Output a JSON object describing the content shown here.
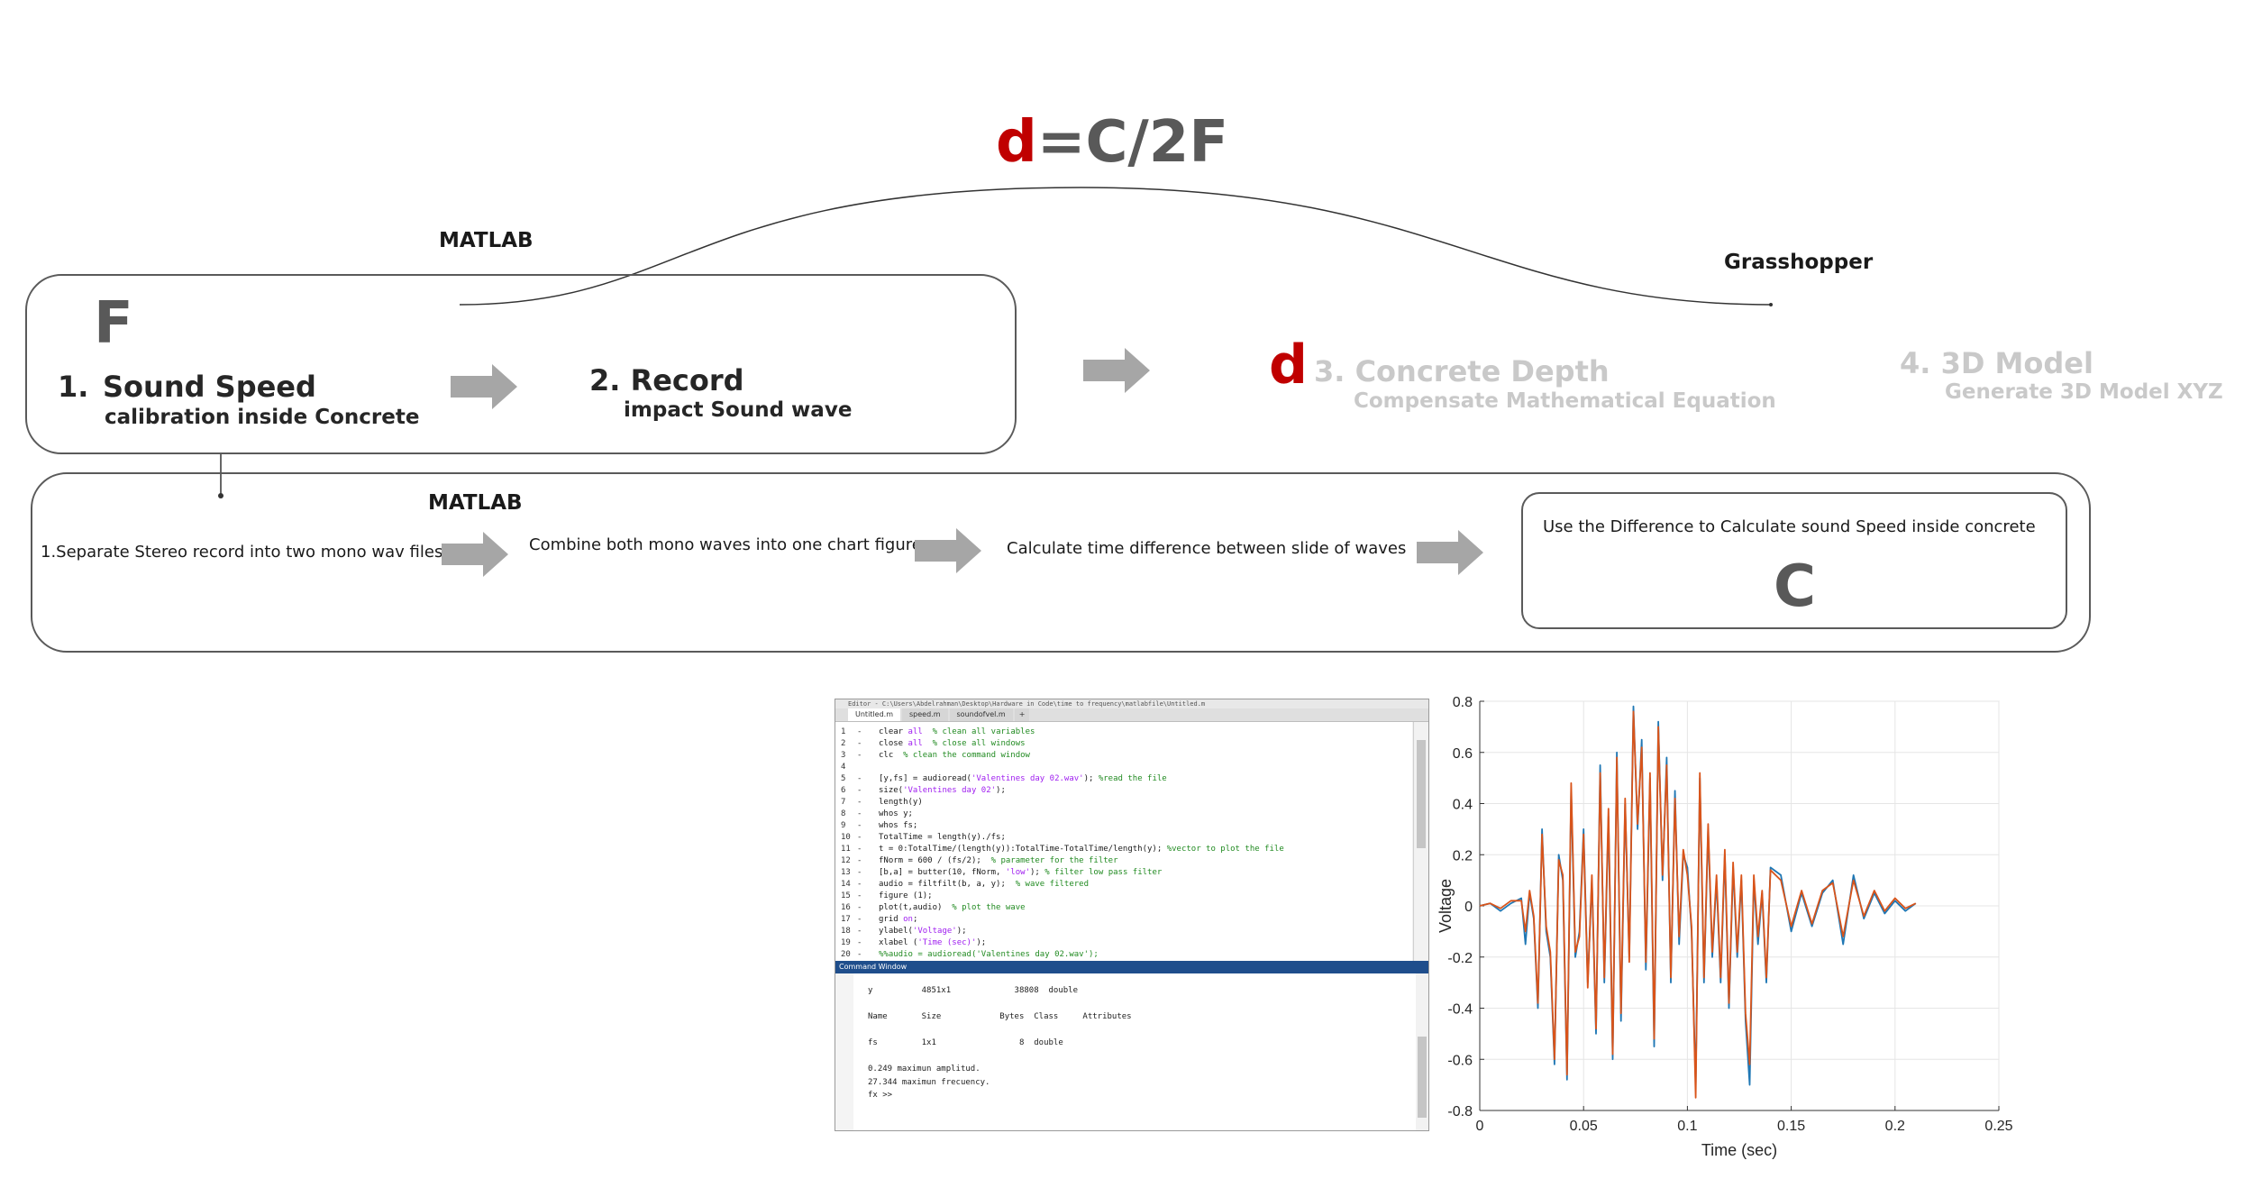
{
  "formula": {
    "d": "d",
    "rest": "=C/2F"
  },
  "top_left_label": "MATLAB",
  "top_right_label": "Grasshopper",
  "stage1": {
    "symbol": "F",
    "step1_num": "1.",
    "step1_title": "Sound Speed",
    "step1_sub": "calibration inside Concrete",
    "step2_title": "2. Record",
    "step2_sub": "impact Sound wave"
  },
  "stage2": {
    "d_letter": "d",
    "step3_title": "3. Concrete Depth",
    "step3_sub": "Compensate Mathematical Equation",
    "step4_title": "4. 3D Model",
    "step4_sub": "Generate 3D Model XYZ"
  },
  "sub_flow": {
    "label": "MATLAB",
    "step_a": "1.Separate Stereo record into two mono wav files",
    "step_b": "Combine both mono waves into one chart figure",
    "step_c": "Calculate time difference between slide of waves",
    "step_d": "Use the Difference to Calculate sound Speed inside concrete",
    "symbol": "C"
  },
  "editor": {
    "title": "Editor - C:\\Users\\Abdelrahman\\Desktop\\Hardware in Code\\time to frequency\\matlabfile\\Untitled.m",
    "tabs": [
      "Untitled.m",
      "speed.m",
      "soundofvel.m"
    ],
    "lines": [
      {
        "n": "1",
        "code": "clear all  % clean all variables"
      },
      {
        "n": "2",
        "code": "close all  % close all windows"
      },
      {
        "n": "3",
        "code": "clc  % clean the command window"
      },
      {
        "n": "4",
        "code": ""
      },
      {
        "n": "5",
        "code": "[y,fs] = audioread('Valentines day 02.wav'); %read the file"
      },
      {
        "n": "6",
        "code": "size('Valentines day 02');"
      },
      {
        "n": "7",
        "code": "length(y)"
      },
      {
        "n": "8",
        "code": "whos y;"
      },
      {
        "n": "9",
        "code": "whos fs;"
      },
      {
        "n": "10",
        "code": "TotalTime = length(y)./fs;"
      },
      {
        "n": "11",
        "code": "t = 0:TotalTime/(length(y)):TotalTime-TotalTime/length(y); %vector to plot the file"
      },
      {
        "n": "12",
        "code": "fNorm = 600 / (fs/2);  % parameter for the filter"
      },
      {
        "n": "13",
        "code": "[b,a] = butter(10, fNorm, 'low'); % filter low pass filter"
      },
      {
        "n": "14",
        "code": "audio = filtfilt(b, a, y);  % wave filtered"
      },
      {
        "n": "15",
        "code": "figure (1);"
      },
      {
        "n": "16",
        "code": "plot(t,audio)  % plot the wave"
      },
      {
        "n": "17",
        "code": "grid on;"
      },
      {
        "n": "18",
        "code": "ylabel('Voltage');"
      },
      {
        "n": "19",
        "code": "xlabel ('Time (sec)');"
      },
      {
        "n": "20",
        "code": "%%audio = audioread('Valentines day 02.wav');"
      }
    ],
    "command_window_title": "Command Window",
    "cw_lines": [
      "y          4851x1             38808  double",
      "",
      "Name       Size            Bytes  Class     Attributes",
      "",
      "fs         1x1                 8  double",
      "",
      "0.249 maximun amplitud.",
      "27.344 maximun frecuency.",
      "fx >> "
    ]
  },
  "chart_data": {
    "type": "line",
    "xlabel": "Time (sec)",
    "ylabel": "Voltage",
    "xlim": [
      0,
      0.25
    ],
    "ylim": [
      -0.8,
      0.8
    ],
    "xticks": [
      0,
      0.05,
      0.1,
      0.15,
      0.2,
      0.25
    ],
    "xtick_labels": [
      "0",
      "0.05",
      "0.1",
      "0.15",
      "0.2",
      "0.25"
    ],
    "yticks": [
      -0.8,
      -0.6,
      -0.4,
      -0.2,
      0,
      0.2,
      0.4,
      0.6,
      0.8
    ],
    "ytick_labels": [
      "-0.8",
      "-0.6",
      "-0.4",
      "-0.2",
      "0",
      "0.2",
      "0.4",
      "0.6",
      "0.8"
    ],
    "grid": true,
    "series": [
      {
        "color": "#1f77b4",
        "x": [
          0,
          0.005,
          0.01,
          0.015,
          0.02,
          0.022,
          0.024,
          0.026,
          0.028,
          0.03,
          0.032,
          0.034,
          0.036,
          0.038,
          0.04,
          0.042,
          0.044,
          0.046,
          0.048,
          0.05,
          0.052,
          0.054,
          0.056,
          0.058,
          0.06,
          0.062,
          0.064,
          0.066,
          0.068,
          0.07,
          0.072,
          0.074,
          0.076,
          0.078,
          0.08,
          0.082,
          0.084,
          0.086,
          0.088,
          0.09,
          0.092,
          0.094,
          0.096,
          0.098,
          0.1,
          0.102,
          0.104,
          0.106,
          0.108,
          0.11,
          0.112,
          0.114,
          0.116,
          0.118,
          0.12,
          0.122,
          0.124,
          0.126,
          0.128,
          0.13,
          0.132,
          0.134,
          0.136,
          0.138,
          0.14,
          0.145,
          0.15,
          0.155,
          0.16,
          0.165,
          0.17,
          0.175,
          0.18,
          0.185,
          0.19,
          0.195,
          0.2,
          0.205,
          0.21
        ],
        "y": [
          0,
          0.01,
          -0.02,
          0.01,
          0.03,
          -0.15,
          0.05,
          -0.05,
          -0.4,
          0.3,
          -0.1,
          -0.2,
          -0.62,
          0.2,
          0.1,
          -0.68,
          0.45,
          -0.2,
          -0.1,
          0.3,
          -0.3,
          0.1,
          -0.5,
          0.55,
          -0.3,
          0.35,
          -0.6,
          0.6,
          -0.45,
          0.4,
          -0.2,
          0.78,
          0.3,
          0.65,
          -0.25,
          0.5,
          -0.55,
          0.72,
          0.1,
          0.58,
          -0.3,
          0.45,
          -0.15,
          0.2,
          0.15,
          -0.1,
          -0.7,
          0.5,
          -0.3,
          0.3,
          -0.2,
          0.1,
          -0.3,
          0.2,
          -0.4,
          0.15,
          -0.2,
          0.1,
          -0.45,
          -0.7,
          0.1,
          -0.15,
          0.05,
          -0.3,
          0.15,
          0.12,
          -0.1,
          0.05,
          -0.08,
          0.05,
          0.1,
          -0.15,
          0.12,
          -0.05,
          0.05,
          -0.03,
          0.02,
          -0.02,
          0.01
        ]
      },
      {
        "color": "#d9541a",
        "x": [
          0,
          0.005,
          0.01,
          0.015,
          0.02,
          0.022,
          0.024,
          0.026,
          0.028,
          0.03,
          0.032,
          0.034,
          0.036,
          0.038,
          0.04,
          0.042,
          0.044,
          0.046,
          0.048,
          0.05,
          0.052,
          0.054,
          0.056,
          0.058,
          0.06,
          0.062,
          0.064,
          0.066,
          0.068,
          0.07,
          0.072,
          0.074,
          0.076,
          0.078,
          0.08,
          0.082,
          0.084,
          0.086,
          0.088,
          0.09,
          0.092,
          0.094,
          0.096,
          0.098,
          0.1,
          0.102,
          0.104,
          0.106,
          0.108,
          0.11,
          0.112,
          0.114,
          0.116,
          0.118,
          0.12,
          0.122,
          0.124,
          0.126,
          0.128,
          0.13,
          0.132,
          0.134,
          0.136,
          0.138,
          0.14,
          0.145,
          0.15,
          0.155,
          0.16,
          0.165,
          0.17,
          0.175,
          0.18,
          0.185,
          0.19,
          0.195,
          0.2,
          0.205,
          0.21
        ],
        "y": [
          0,
          0.01,
          -0.01,
          0.02,
          0.02,
          -0.1,
          0.06,
          -0.04,
          -0.38,
          0.28,
          -0.08,
          -0.18,
          -0.6,
          0.18,
          0.12,
          -0.66,
          0.48,
          -0.18,
          -0.12,
          0.28,
          -0.32,
          0.12,
          -0.48,
          0.52,
          -0.28,
          0.38,
          -0.58,
          0.58,
          -0.42,
          0.42,
          -0.22,
          0.76,
          0.32,
          0.62,
          -0.22,
          0.52,
          -0.52,
          0.7,
          0.12,
          0.55,
          -0.28,
          0.42,
          -0.12,
          0.22,
          0.12,
          -0.08,
          -0.75,
          0.52,
          -0.28,
          0.32,
          -0.18,
          0.12,
          -0.28,
          0.22,
          -0.38,
          0.17,
          -0.18,
          0.12,
          -0.42,
          -0.62,
          0.12,
          -0.12,
          0.06,
          -0.28,
          0.14,
          0.1,
          -0.08,
          0.06,
          -0.07,
          0.06,
          0.09,
          -0.12,
          0.1,
          -0.04,
          0.06,
          -0.02,
          0.03,
          -0.01,
          0.01
        ]
      }
    ]
  }
}
